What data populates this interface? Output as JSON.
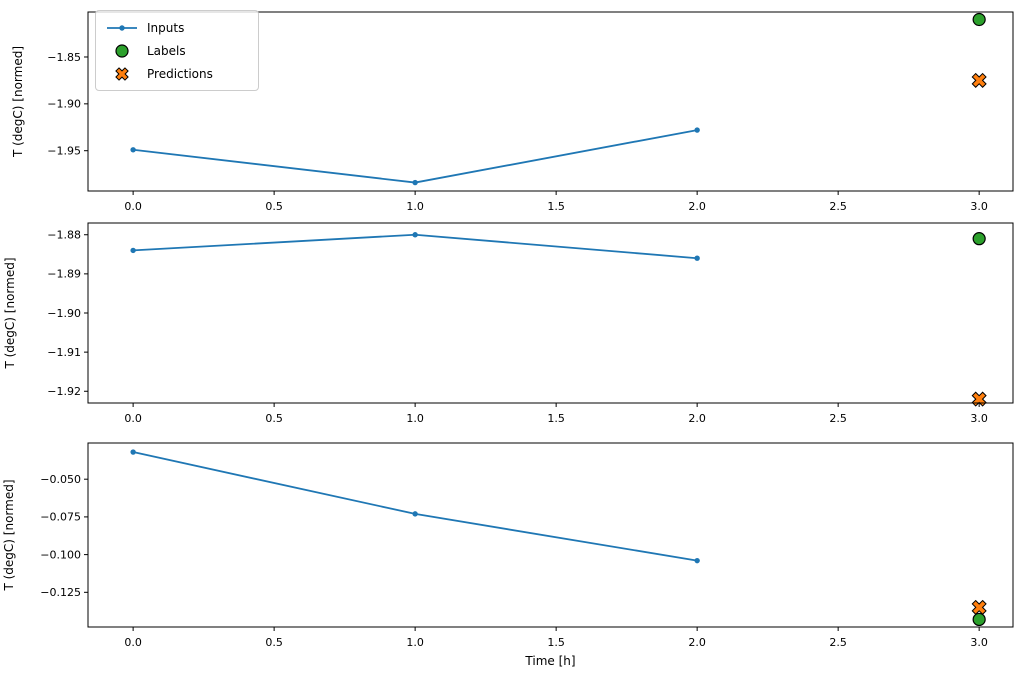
{
  "figure": {
    "background": "#ffffff",
    "xlabel": "Time [h]",
    "ylabel": "T (degC) [normed]",
    "axis_color": "#000000",
    "legend": {
      "position": "upper-left",
      "items": [
        {
          "label": "Inputs",
          "marker": "line-dot",
          "color": "#1f77b4"
        },
        {
          "label": "Labels",
          "marker": "circle",
          "color": "#2ca02c"
        },
        {
          "label": "Predictions",
          "marker": "X",
          "color": "#ff7f0e"
        }
      ]
    }
  },
  "chart_data": [
    {
      "type": "line",
      "title": "",
      "xlabel": "",
      "ylabel": "T (degC) [normed]",
      "xlim": [
        -0.16,
        3.12
      ],
      "ylim": [
        -1.993,
        -1.802
      ],
      "grid": false,
      "show_x_tick_labels": true,
      "legend": true,
      "xticks": [
        0.0,
        0.5,
        1.0,
        1.5,
        2.0,
        2.5,
        3.0
      ],
      "xtick_labels": [
        "0.0",
        "0.5",
        "1.0",
        "1.5",
        "2.0",
        "2.5",
        "3.0"
      ],
      "yticks": [
        -1.85,
        -1.9,
        -1.95
      ],
      "ytick_labels": [
        "−1.85",
        "−1.90",
        "−1.95"
      ],
      "series": [
        {
          "name": "Inputs",
          "kind": "line",
          "marker": "dot",
          "color": "#1f77b4",
          "x": [
            0,
            1,
            2
          ],
          "y": [
            -1.949,
            -1.984,
            -1.928
          ]
        },
        {
          "name": "Labels",
          "kind": "scatter",
          "marker": "circle",
          "color": "#2ca02c",
          "x": [
            3
          ],
          "y": [
            -1.81
          ]
        },
        {
          "name": "Predictions",
          "kind": "scatter",
          "marker": "X",
          "color": "#ff7f0e",
          "x": [
            3
          ],
          "y": [
            -1.875
          ]
        }
      ]
    },
    {
      "type": "line",
      "title": "",
      "xlabel": "",
      "ylabel": "T (degC) [normed]",
      "xlim": [
        -0.16,
        3.12
      ],
      "ylim": [
        -1.923,
        -1.877
      ],
      "grid": false,
      "show_x_tick_labels": true,
      "legend": false,
      "xticks": [
        0.0,
        0.5,
        1.0,
        1.5,
        2.0,
        2.5,
        3.0
      ],
      "xtick_labels": [
        "0.0",
        "0.5",
        "1.0",
        "1.5",
        "2.0",
        "2.5",
        "3.0"
      ],
      "yticks": [
        -1.88,
        -1.89,
        -1.9,
        -1.91,
        -1.92
      ],
      "ytick_labels": [
        "−1.88",
        "−1.89",
        "−1.90",
        "−1.91",
        "−1.92"
      ],
      "series": [
        {
          "name": "Inputs",
          "kind": "line",
          "marker": "dot",
          "color": "#1f77b4",
          "x": [
            0,
            1,
            2
          ],
          "y": [
            -1.884,
            -1.88,
            -1.886
          ]
        },
        {
          "name": "Labels",
          "kind": "scatter",
          "marker": "circle",
          "color": "#2ca02c",
          "x": [
            3
          ],
          "y": [
            -1.881
          ]
        },
        {
          "name": "Predictions",
          "kind": "scatter",
          "marker": "X",
          "color": "#ff7f0e",
          "x": [
            3
          ],
          "y": [
            -1.922
          ]
        }
      ]
    },
    {
      "type": "line",
      "title": "",
      "xlabel": "Time [h]",
      "ylabel": "T (degC) [normed]",
      "xlim": [
        -0.16,
        3.12
      ],
      "ylim": [
        -0.148,
        -0.026
      ],
      "grid": false,
      "show_x_tick_labels": true,
      "legend": false,
      "xticks": [
        0.0,
        0.5,
        1.0,
        1.5,
        2.0,
        2.5,
        3.0
      ],
      "xtick_labels": [
        "0.0",
        "0.5",
        "1.0",
        "1.5",
        "2.0",
        "2.5",
        "3.0"
      ],
      "yticks": [
        -0.05,
        -0.075,
        -0.1,
        -0.125
      ],
      "ytick_labels": [
        "−0.050",
        "−0.075",
        "−0.100",
        "−0.125"
      ],
      "series": [
        {
          "name": "Inputs",
          "kind": "line",
          "marker": "dot",
          "color": "#1f77b4",
          "x": [
            0,
            1,
            2
          ],
          "y": [
            -0.032,
            -0.073,
            -0.104
          ]
        },
        {
          "name": "Labels",
          "kind": "scatter",
          "marker": "circle",
          "color": "#2ca02c",
          "x": [
            3
          ],
          "y": [
            -0.143
          ]
        },
        {
          "name": "Predictions",
          "kind": "scatter",
          "marker": "X",
          "color": "#ff7f0e",
          "x": [
            3
          ],
          "y": [
            -0.135
          ]
        }
      ]
    }
  ]
}
